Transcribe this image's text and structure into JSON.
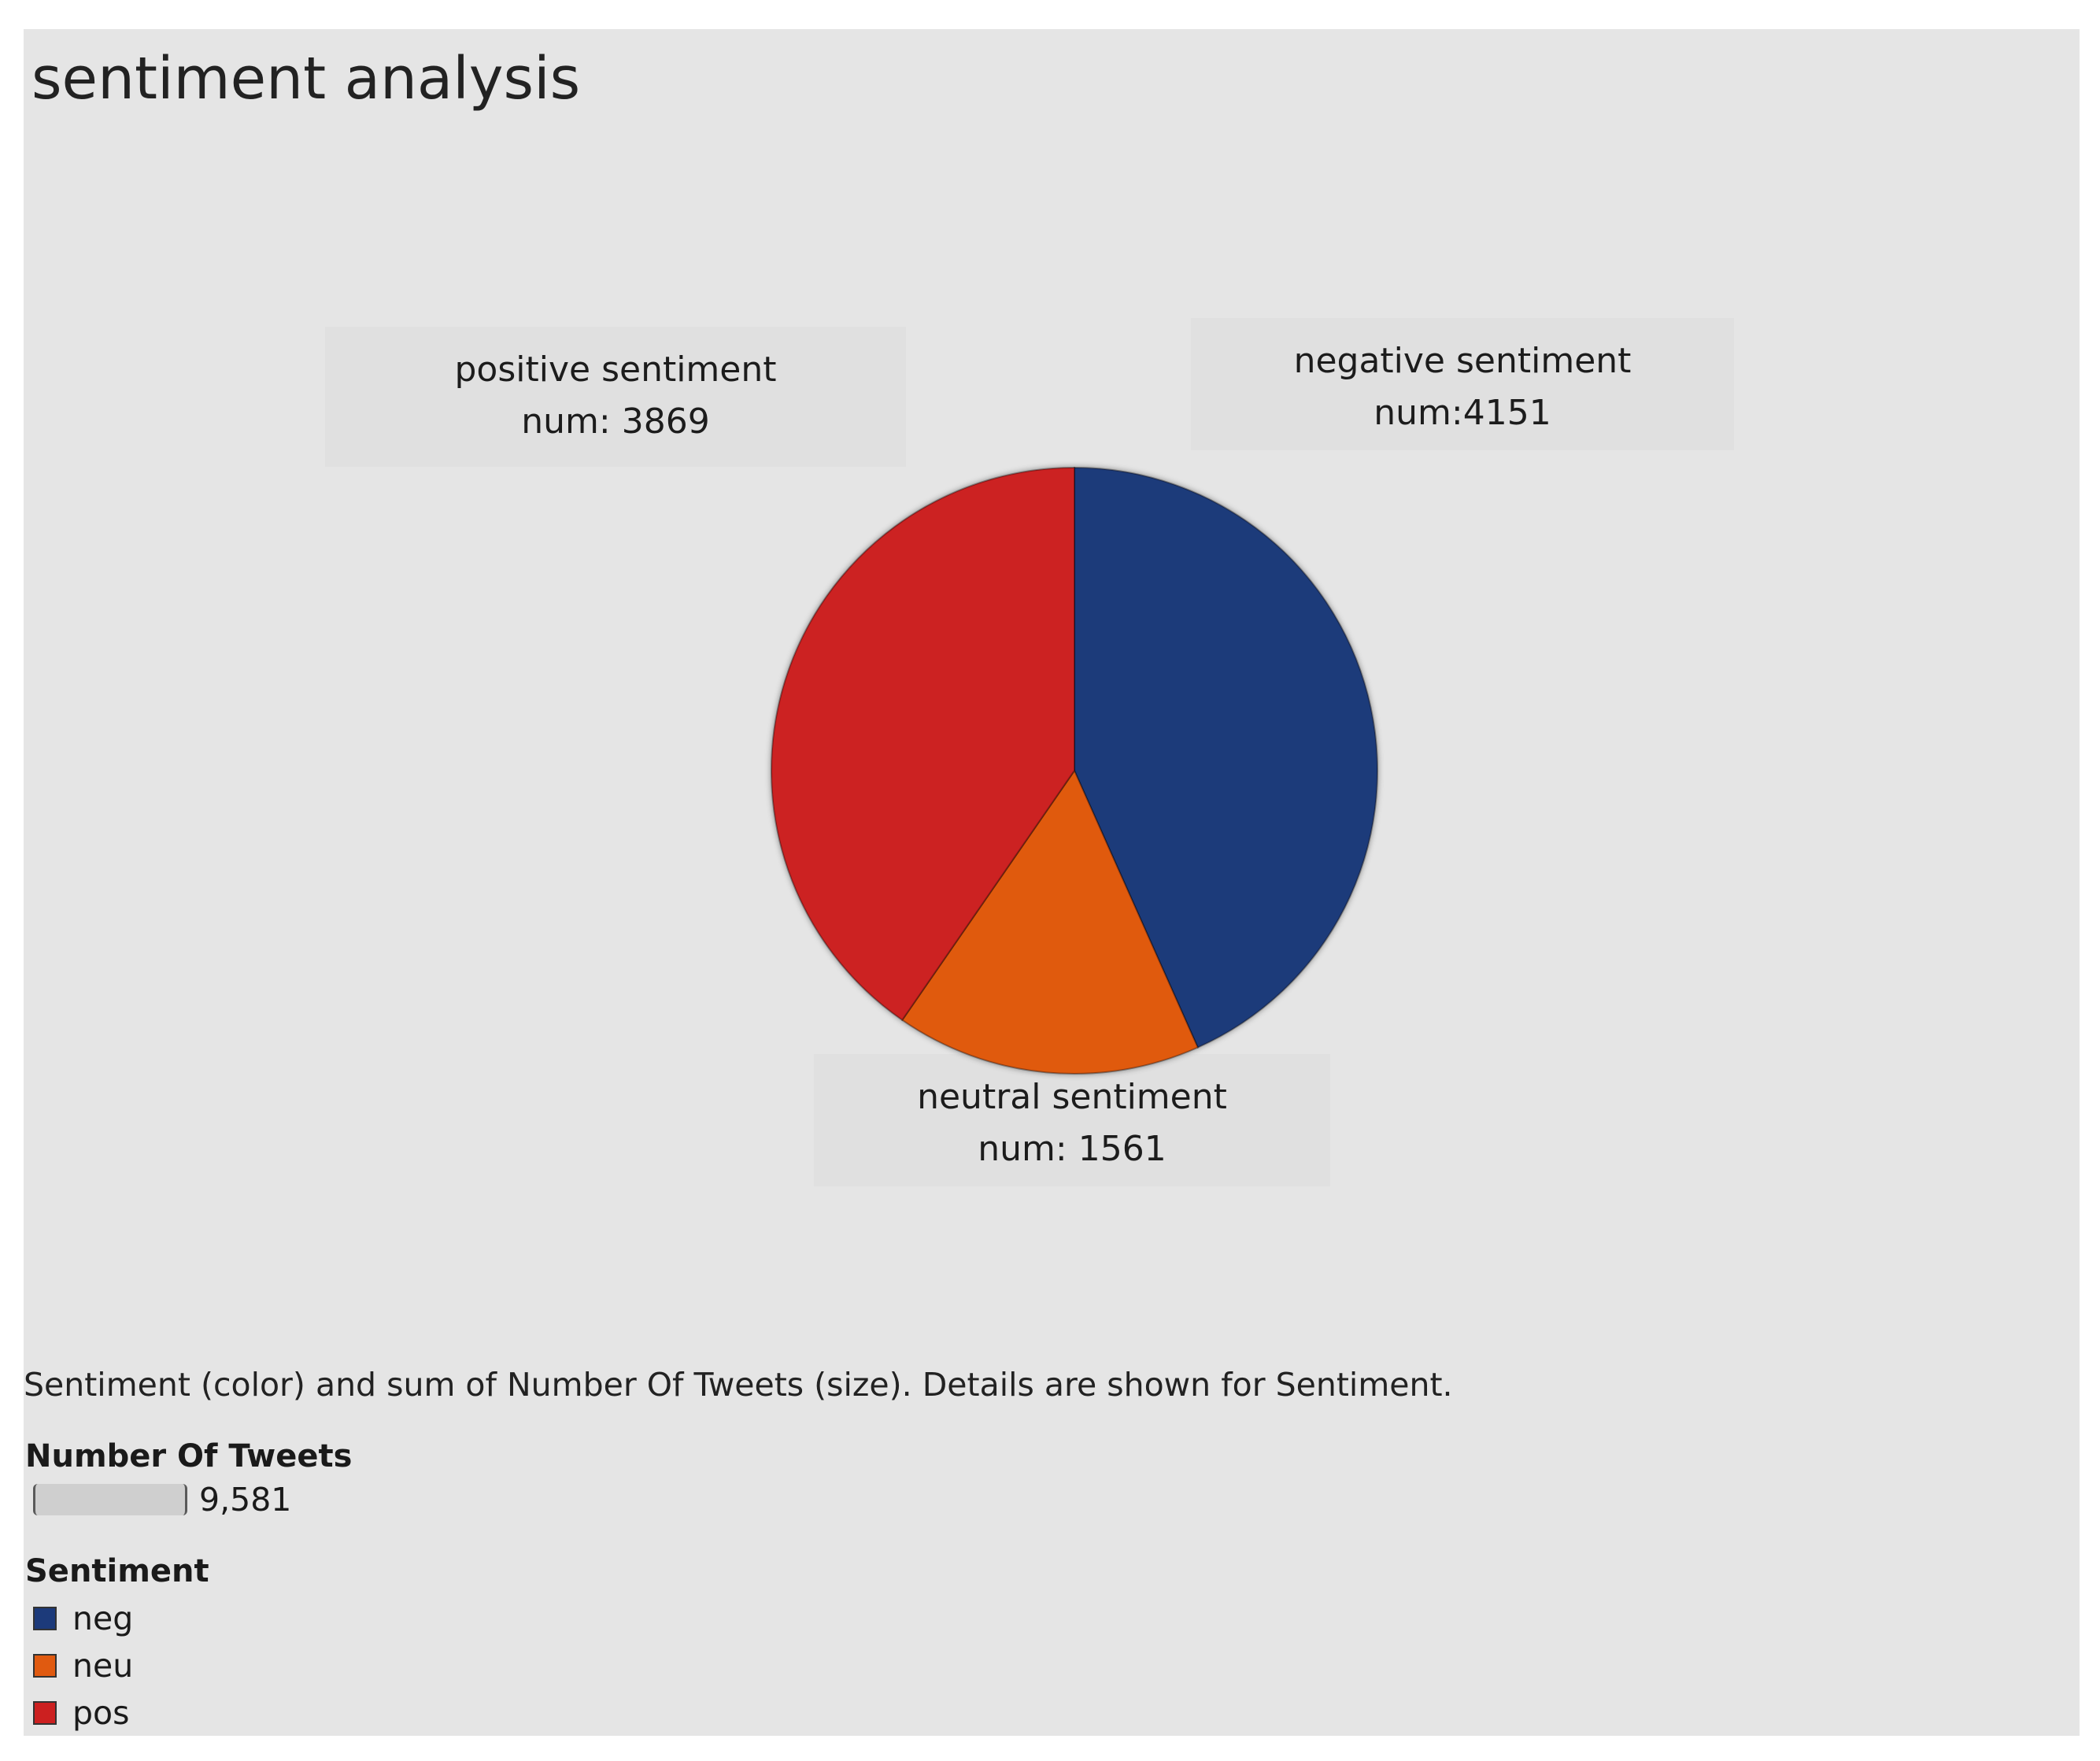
{
  "title": "sentiment analysis",
  "callouts": {
    "positive": {
      "line1": "positive sentiment",
      "line2": "num: 3869"
    },
    "negative": {
      "line1": "negative sentiment",
      "line2": "num:4151"
    },
    "neutral": {
      "line1": "neutral sentiment",
      "line2": "num: 1561"
    }
  },
  "caption": "Sentiment (color) and sum of Number Of Tweets (size).  Details are shown for Sentiment.",
  "size_legend": {
    "title": "Number Of Tweets",
    "value": "9,581"
  },
  "color_legend": {
    "title": "Sentiment",
    "items": [
      {
        "label": "neg",
        "color": "#1c3a7a"
      },
      {
        "label": "neu",
        "color": "#e05a10"
      },
      {
        "label": "pos",
        "color": "#cc2020"
      }
    ]
  },
  "chart_data": {
    "type": "pie",
    "title": "sentiment analysis",
    "start": "12 o'clock",
    "direction": "clockwise",
    "slices": [
      {
        "label": "neg",
        "value": 4151,
        "color": "#1c3a7a"
      },
      {
        "label": "neu",
        "value": 1561,
        "color": "#e05a10"
      },
      {
        "label": "pos",
        "value": 3869,
        "color": "#cc2020"
      }
    ],
    "total": 9581,
    "legend": "bottom-left"
  }
}
